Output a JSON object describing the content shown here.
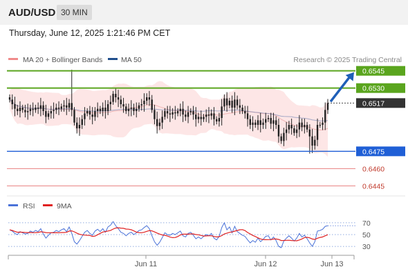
{
  "header": {
    "symbol": "AUD/USD",
    "timeframe": "30 MIN"
  },
  "datetime": "Thursday, June 12, 2025 1:21:46 PM CET",
  "legend": {
    "bollinger": {
      "label": "MA 20 + Bollinger Bands",
      "color": "#f08a8a"
    },
    "ma50": {
      "label": "MA 50",
      "color": "#1f4e8c"
    },
    "credit": "Research © 2025 Trading Central"
  },
  "rsi_legend": {
    "rsi": {
      "label": "RSI",
      "color": "#4a72d8"
    },
    "ma9": {
      "label": "9MA",
      "color": "#e02020"
    }
  },
  "colors": {
    "resistance": "#5aa51e",
    "support": "#1f5fd6",
    "minor_support": "#e87f7f",
    "current": "#333333",
    "candle": "#222222",
    "band_fill": "#fde3e3",
    "arrow": "#1f5fb8"
  },
  "chart_data": {
    "type": "candlestick",
    "symbol": "AUD/USD",
    "timeframe": "30 MIN",
    "ylim": [
      0.6435,
      0.6555
    ],
    "xlabels": [
      "Jun 11",
      "Jun 12",
      "Jun 13"
    ],
    "levels": [
      {
        "value": 0.6545,
        "label": "0.6545",
        "type": "resistance"
      },
      {
        "value": 0.653,
        "label": "0.6530",
        "type": "resistance"
      },
      {
        "value": 0.6517,
        "label": "0.6517",
        "type": "current"
      },
      {
        "value": 0.6475,
        "label": "0.6475",
        "type": "support"
      },
      {
        "value": 0.646,
        "label": "0.6460",
        "type": "minor_support"
      },
      {
        "value": 0.6445,
        "label": "0.6445",
        "type": "minor_support"
      }
    ],
    "forecast": {
      "from": 0.6517,
      "to": 0.6545,
      "direction": "up"
    },
    "close": [
      0.652,
      0.6516,
      0.6512,
      0.651,
      0.6513,
      0.6511,
      0.6509,
      0.651,
      0.6512,
      0.6511,
      0.6513,
      0.6512,
      0.6515,
      0.651,
      0.6505,
      0.6508,
      0.651,
      0.6511,
      0.6513,
      0.6512,
      0.6514,
      0.6515,
      0.6513,
      0.6517,
      0.6511,
      0.65,
      0.6495,
      0.6498,
      0.6503,
      0.6508,
      0.651,
      0.6507,
      0.6505,
      0.651,
      0.6512,
      0.651,
      0.6513,
      0.651,
      0.6516,
      0.6518,
      0.6525,
      0.6522,
      0.652,
      0.6516,
      0.6514,
      0.651,
      0.6512,
      0.6513,
      0.651,
      0.6512,
      0.6515,
      0.6516,
      0.6519,
      0.6522,
      0.652,
      0.6511,
      0.6503,
      0.6497,
      0.65,
      0.6505,
      0.651,
      0.6508,
      0.6507,
      0.6509,
      0.6508,
      0.651,
      0.6512,
      0.6507,
      0.6505,
      0.6509,
      0.651,
      0.6507,
      0.6503,
      0.6505,
      0.6503,
      0.6505,
      0.6507,
      0.6506,
      0.6508,
      0.6503,
      0.6501,
      0.6504,
      0.6514,
      0.6521,
      0.6515,
      0.6519,
      0.6513,
      0.652,
      0.6515,
      0.6513,
      0.651,
      0.6508,
      0.6503,
      0.6498,
      0.65,
      0.6498,
      0.6502,
      0.6498,
      0.65,
      0.6503,
      0.6504,
      0.6499,
      0.6502,
      0.6498,
      0.6488,
      0.6484,
      0.6491,
      0.6494,
      0.6498,
      0.6495,
      0.6491,
      0.6494,
      0.65,
      0.6496,
      0.6498,
      0.6494,
      0.6488,
      0.648,
      0.6485,
      0.6498,
      0.6498,
      0.65,
      0.6511,
      0.6517
    ],
    "rsi": {
      "levels": [
        70,
        50,
        30
      ],
      "ylim": [
        22,
        78
      ],
      "rsi": [
        58,
        56,
        52,
        50,
        55,
        53,
        51,
        52,
        56,
        54,
        57,
        55,
        60,
        51,
        44,
        49,
        53,
        54,
        57,
        55,
        58,
        60,
        55,
        63,
        52,
        38,
        34,
        40,
        47,
        54,
        57,
        52,
        49,
        56,
        59,
        55,
        60,
        54,
        63,
        66,
        72,
        65,
        60,
        54,
        52,
        48,
        52,
        54,
        50,
        53,
        57,
        58,
        62,
        65,
        60,
        48,
        38,
        32,
        37,
        45,
        53,
        50,
        49,
        52,
        50,
        53,
        56,
        48,
        46,
        52,
        54,
        49,
        43,
        46,
        43,
        47,
        50,
        48,
        52,
        44,
        41,
        47,
        62,
        70,
        58,
        63,
        53,
        64,
        55,
        52,
        49,
        47,
        41,
        36,
        40,
        37,
        44,
        38,
        42,
        47,
        48,
        41,
        46,
        40,
        30,
        28,
        39,
        44,
        48,
        44,
        39,
        44,
        52,
        46,
        49,
        43,
        36,
        30,
        38,
        56,
        57,
        59,
        64,
        65
      ]
    }
  }
}
